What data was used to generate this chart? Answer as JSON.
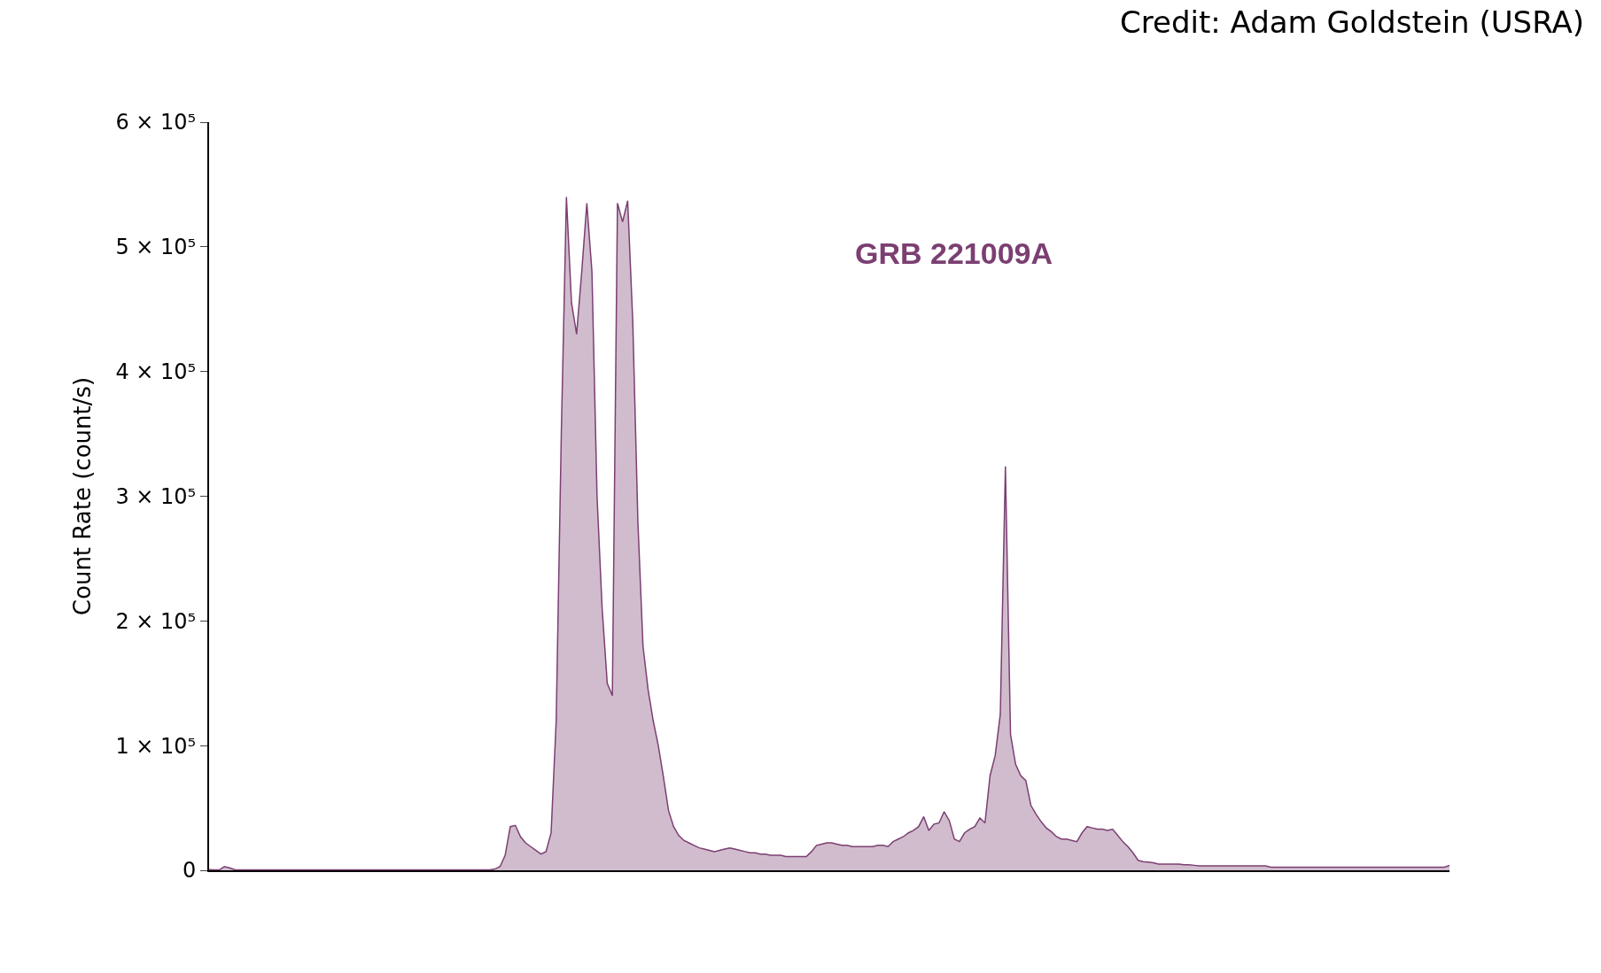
{
  "chart_data": {
    "type": "area",
    "ylabel": "Count Rate (count/s)",
    "annotations": [
      "GRB 221009A",
      "Credit: Adam Goldstein (USRA)"
    ],
    "tick_labels": "y",
    "ylim": [
      0,
      600000
    ],
    "yticks": [
      0,
      {
        "value": 100000,
        "label": "1 × 10⁵"
      },
      {
        "value": 200000,
        "label": "2 × 10⁵"
      },
      {
        "value": 300000,
        "label": "3 × 10⁵"
      },
      {
        "value": 400000,
        "label": "4 × 10⁵"
      },
      {
        "value": 500000,
        "label": "5 × 10⁵"
      },
      {
        "value": 600000,
        "label": "6 × 10⁵"
      }
    ],
    "categories": [
      null,
      null,
      null,
      null,
      null,
      null,
      null,
      null,
      null,
      null,
      null,
      null,
      null,
      null,
      null,
      null,
      null,
      null,
      null,
      null,
      null,
      null,
      null,
      null,
      null,
      null,
      null,
      null,
      null,
      null,
      null,
      null,
      null,
      null,
      null,
      null,
      null,
      null,
      null,
      null,
      null,
      null,
      null,
      null,
      null,
      null,
      null,
      null,
      null,
      null,
      null,
      null,
      null,
      null,
      null,
      null,
      null,
      null,
      null,
      null,
      null,
      null,
      null,
      null,
      null,
      null,
      null,
      null,
      null,
      null,
      null,
      null,
      null,
      null,
      null,
      null,
      null,
      null,
      null,
      null,
      null,
      null,
      null,
      null,
      null,
      null,
      null,
      null,
      null,
      null,
      null,
      null,
      null,
      null,
      null,
      null,
      null,
      null,
      null,
      null,
      null,
      null,
      null,
      null,
      null,
      null,
      null,
      null,
      null,
      null,
      null,
      null,
      null,
      null,
      null,
      null,
      null,
      null,
      null,
      null,
      null,
      null,
      null,
      null,
      null,
      null,
      null,
      null,
      null,
      null,
      null,
      null,
      null,
      null,
      null,
      null,
      null,
      null,
      null,
      null,
      null,
      null,
      null,
      null,
      null,
      null,
      null,
      null,
      null,
      null,
      null,
      null,
      null,
      null,
      null,
      null,
      null,
      null,
      null,
      null,
      null,
      null,
      null,
      null,
      null,
      null,
      null,
      null,
      null,
      null,
      null,
      null,
      null,
      null,
      null,
      null,
      null,
      null,
      null,
      null,
      null,
      null,
      null,
      null,
      null,
      null,
      null,
      null,
      null,
      null,
      null,
      null,
      null,
      null,
      null,
      null,
      null,
      null,
      null,
      null,
      null,
      null,
      null,
      null,
      null,
      null,
      null,
      null,
      null,
      null,
      null,
      null,
      null,
      null,
      null,
      null,
      null,
      null,
      null,
      null,
      null,
      null,
      null,
      null,
      null,
      null,
      null,
      null,
      null,
      null,
      null,
      null,
      null,
      null,
      null,
      null,
      null,
      null,
      null,
      null,
      null,
      null,
      null,
      null
    ],
    "series": [
      {
        "color": "#7b3f72",
        "values": [
          500,
          300,
          300,
          3000,
          2000,
          500,
          300,
          300,
          300,
          300,
          300,
          300,
          300,
          300,
          300,
          300,
          300,
          300,
          300,
          300,
          300,
          300,
          300,
          300,
          300,
          300,
          300,
          300,
          300,
          300,
          300,
          300,
          300,
          300,
          300,
          300,
          300,
          300,
          300,
          300,
          300,
          300,
          300,
          300,
          300,
          300,
          300,
          300,
          300,
          300,
          300,
          300,
          300,
          300,
          300,
          300,
          1000,
          3000,
          12000,
          35000,
          36000,
          27000,
          22000,
          19000,
          16000,
          13000,
          15000,
          30000,
          120000,
          350000,
          540000,
          455000,
          430000,
          480000,
          535000,
          480000,
          300000,
          210000,
          150000,
          140000,
          535000,
          520000,
          537000,
          440000,
          280000,
          180000,
          145000,
          120000,
          100000,
          75000,
          48000,
          35000,
          28000,
          24000,
          22000,
          20000,
          18000,
          17000,
          16000,
          15000,
          16000,
          17000,
          18000,
          17000,
          16000,
          15000,
          14000,
          14000,
          13000,
          13000,
          12000,
          12000,
          12000,
          11000,
          11000,
          11000,
          11000,
          11000,
          15000,
          20000,
          21000,
          22000,
          22000,
          21000,
          20000,
          20000,
          19000,
          19000,
          19000,
          19000,
          19000,
          20000,
          20000,
          19000,
          23000,
          25000,
          27000,
          30000,
          32000,
          35000,
          43000,
          32000,
          37000,
          38000,
          47000,
          40000,
          25000,
          23000,
          30000,
          33000,
          35000,
          42000,
          38000,
          76000,
          92000,
          125000,
          324000,
          109000,
          85000,
          76000,
          72000,
          52000,
          45000,
          39000,
          34000,
          31000,
          27000,
          25000,
          25000,
          24000,
          23000,
          30000,
          35000,
          34000,
          33000,
          33000,
          32000,
          33000,
          28000,
          23000,
          19000,
          14000,
          8000,
          7000,
          6500,
          6000,
          5000,
          5000,
          5000,
          5000,
          5000,
          4500,
          4500,
          4000,
          3500,
          3500,
          3500,
          3500,
          3500,
          3500,
          3500,
          3500,
          3500,
          3500,
          3500,
          3500,
          3500,
          3500,
          2500,
          2500,
          2500,
          2500,
          2500,
          2500,
          2500,
          2500,
          2500,
          2500,
          2500,
          2500,
          2500,
          2500,
          2500,
          2500,
          2500,
          2500,
          2500,
          2500,
          2500,
          2500,
          2500,
          2500,
          2500,
          2500,
          2500,
          2500,
          2500,
          2500,
          2500,
          2500,
          2500,
          2500,
          2500,
          4000
        ]
      }
    ]
  }
}
